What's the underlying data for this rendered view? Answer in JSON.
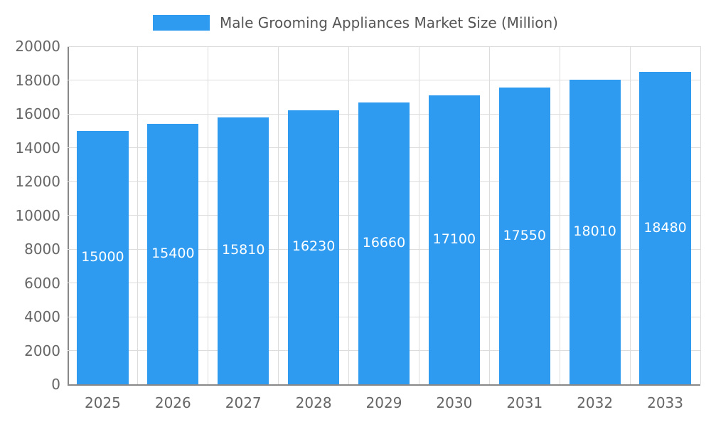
{
  "chart_data": {
    "type": "bar",
    "title": "Male Grooming Appliances Market Size (Million)",
    "categories": [
      "2025",
      "2026",
      "2027",
      "2028",
      "2029",
      "2030",
      "2031",
      "2032",
      "2033"
    ],
    "values": [
      15000,
      15400,
      15810,
      16230,
      16660,
      17100,
      17550,
      18010,
      18480
    ],
    "xlabel": "",
    "ylabel": "",
    "ylim": [
      0,
      20000
    ],
    "ytick_step": 2000,
    "grid": true,
    "legend_position": "top",
    "bar_color": "#2E9BF0",
    "label_color": "#ffffff",
    "axis_color": "#888888",
    "grid_color": "#dcdcdc",
    "tick_text_color": "#666666",
    "title_color": "#555555"
  }
}
